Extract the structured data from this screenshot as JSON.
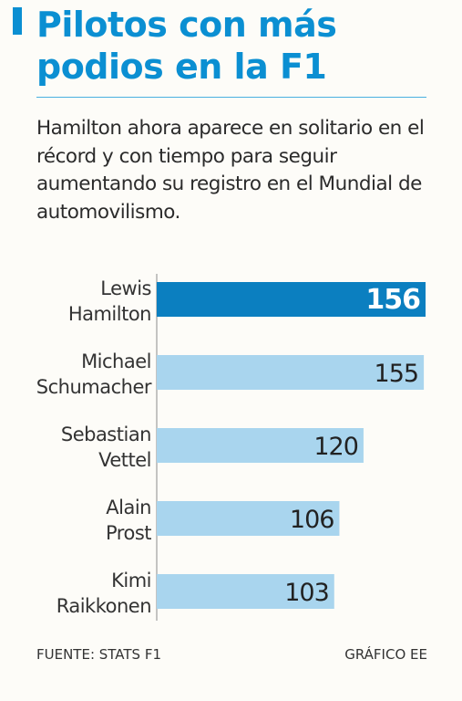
{
  "header": {
    "title": "Pilotos con más podios en la F1",
    "subtitle": "Hamilton ahora aparece en solitario en el récord y con tiempo para seguir aumentando su registro en el Mundial de automovilismo."
  },
  "colors": {
    "accent": "#0b8fd2",
    "bar_highlight": "#0b7fc0",
    "bar_default": "#a9d5ee"
  },
  "chart_data": {
    "type": "bar",
    "orientation": "horizontal",
    "categories": [
      [
        "Lewis",
        "Hamilton"
      ],
      [
        "Michael",
        "Schumacher"
      ],
      [
        "Sebastian",
        "Vettel"
      ],
      [
        "Alain",
        "Prost"
      ],
      [
        "Kimi",
        "Raikkonen"
      ]
    ],
    "values": [
      156,
      155,
      120,
      106,
      103
    ],
    "highlight_index": 0,
    "xlim": [
      0,
      156
    ],
    "grid": false,
    "legend": "none",
    "data_labels": true
  },
  "footer": {
    "source": "FUENTE: STATS F1",
    "credit": "GRÁFICO EE"
  }
}
